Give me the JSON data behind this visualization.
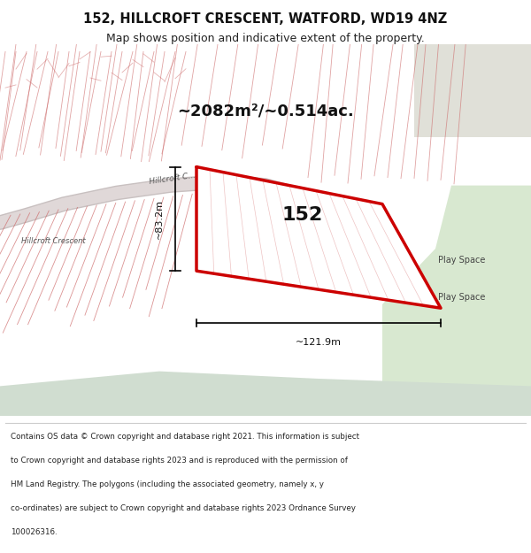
{
  "title_line1": "152, HILLCROFT CRESCENT, WATFORD, WD19 4NZ",
  "title_line2": "Map shows position and indicative extent of the property.",
  "footer_lines": [
    "Contains OS data © Crown copyright and database right 2021. This information is subject",
    "to Crown copyright and database rights 2023 and is reproduced with the permission of",
    "HM Land Registry. The polygons (including the associated geometry, namely x, y",
    "co-ordinates) are subject to Crown copyright and database rights 2023 Ordnance Survey",
    "100026316."
  ],
  "area_label": "~2082m²/~0.514ac.",
  "parcel_number": "152",
  "dim_width": "~121.9m",
  "dim_height": "~83.2m",
  "bg_map_color": "#f2eded",
  "parcel_fill": "#ffffff",
  "parcel_edge_color": "#cc0000",
  "parcel_edge_width": 2.5,
  "footer_bg": "#ffffff",
  "header_bg": "#ffffff",
  "cadastral_line_color": "#cc6666",
  "play_space_color": "#d8e8d0",
  "green_bottom_color": "#d0ddd0",
  "top_right_color": "#e0e0d8",
  "road_outer_color": "#c8c0c0",
  "road_inner_color": "#e0d8d8"
}
